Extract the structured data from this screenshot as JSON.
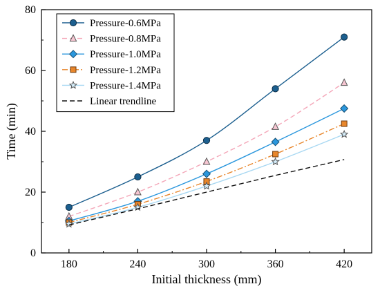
{
  "chart_data": {
    "type": "line",
    "title": "",
    "xlabel": "Initial thickness (mm)",
    "ylabel": "Time (min)",
    "x": [
      180,
      240,
      300,
      360,
      420
    ],
    "x_ticks": [
      "180",
      "240",
      "300",
      "360",
      "420"
    ],
    "xlim": [
      156,
      444
    ],
    "ylim": [
      0,
      80
    ],
    "y_ticks": [
      "0",
      "20",
      "40",
      "60",
      "80"
    ],
    "grid": false,
    "legend_position": "top-left",
    "series": [
      {
        "name": "Pressure-0.6MPa",
        "values": [
          15.0,
          25.0,
          37.0,
          54.0,
          71.0
        ],
        "color": "#1c5f8f",
        "line_style": "solid",
        "marker": "circle",
        "marker_fill": "#1c5f8f",
        "marker_stroke": "#0e2f47"
      },
      {
        "name": "Pressure-0.8MPa",
        "values": [
          12.0,
          20.0,
          30.0,
          41.5,
          56.0
        ],
        "color": "#f4a6b8",
        "line_style": "dashed",
        "marker": "triangle",
        "marker_fill": "#f7c6d2",
        "marker_stroke": "#555555"
      },
      {
        "name": "Pressure-1.0MPa",
        "values": [
          10.5,
          17.0,
          26.0,
          36.5,
          47.5
        ],
        "color": "#2b97dd",
        "line_style": "solid",
        "marker": "diamond",
        "marker_fill": "#2b97dd",
        "marker_stroke": "#174f73"
      },
      {
        "name": "Pressure-1.2MPa",
        "values": [
          10.0,
          16.0,
          23.5,
          32.5,
          42.5
        ],
        "color": "#e8862b",
        "line_style": "dashdot",
        "marker": "square",
        "marker_fill": "#e8862b",
        "marker_stroke": "#6b3a0e"
      },
      {
        "name": "Pressure-1.4MPa",
        "values": [
          9.5,
          15.0,
          22.0,
          30.0,
          39.0
        ],
        "color": "#a8d8f2",
        "line_style": "solid",
        "marker": "star",
        "marker_fill": "#d6eefb",
        "marker_stroke": "#555555"
      },
      {
        "name": "Linear trendline",
        "values": [
          9.2,
          14.5,
          20.0,
          25.5,
          30.7
        ],
        "color": "#111111",
        "line_style": "dashed",
        "marker": "none"
      }
    ]
  }
}
